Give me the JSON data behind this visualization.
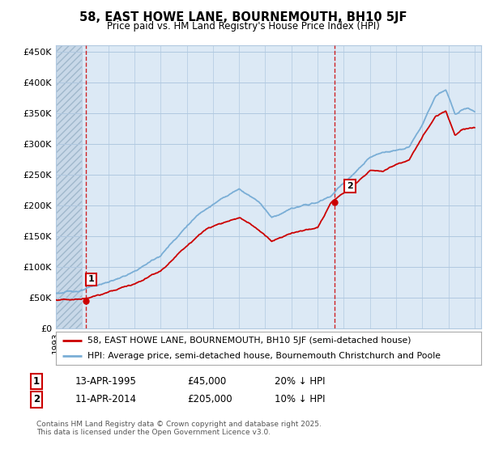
{
  "title": "58, EAST HOWE LANE, BOURNEMOUTH, BH10 5JF",
  "subtitle": "Price paid vs. HM Land Registry's House Price Index (HPI)",
  "ylim": [
    0,
    460000
  ],
  "yticks": [
    0,
    50000,
    100000,
    150000,
    200000,
    250000,
    300000,
    350000,
    400000,
    450000
  ],
  "ytick_labels": [
    "£0",
    "£50K",
    "£100K",
    "£150K",
    "£200K",
    "£250K",
    "£300K",
    "£350K",
    "£400K",
    "£450K"
  ],
  "xlim_start": 1993.0,
  "xlim_end": 2025.5,
  "sale1_date": 1995.28,
  "sale1_price": 45000,
  "sale2_date": 2014.28,
  "sale2_price": 205000,
  "hpi_color": "#7aaed6",
  "sale_color": "#cc0000",
  "vline_color": "#cc0000",
  "plot_bg_color": "#dce9f5",
  "hatch_bg_color": "#c8d8e8",
  "background_color": "#ffffff",
  "grid_color": "#b0c8e0",
  "legend1_text": "58, EAST HOWE LANE, BOURNEMOUTH, BH10 5JF (semi-detached house)",
  "legend2_text": "HPI: Average price, semi-detached house, Bournemouth Christchurch and Poole",
  "note1_label": "1",
  "note1_date": "13-APR-1995",
  "note1_price": "£45,000",
  "note1_hpi": "20% ↓ HPI",
  "note2_label": "2",
  "note2_date": "11-APR-2014",
  "note2_price": "£205,000",
  "note2_hpi": "10% ↓ HPI",
  "footer": "Contains HM Land Registry data © Crown copyright and database right 2025.\nThis data is licensed under the Open Government Licence v3.0."
}
